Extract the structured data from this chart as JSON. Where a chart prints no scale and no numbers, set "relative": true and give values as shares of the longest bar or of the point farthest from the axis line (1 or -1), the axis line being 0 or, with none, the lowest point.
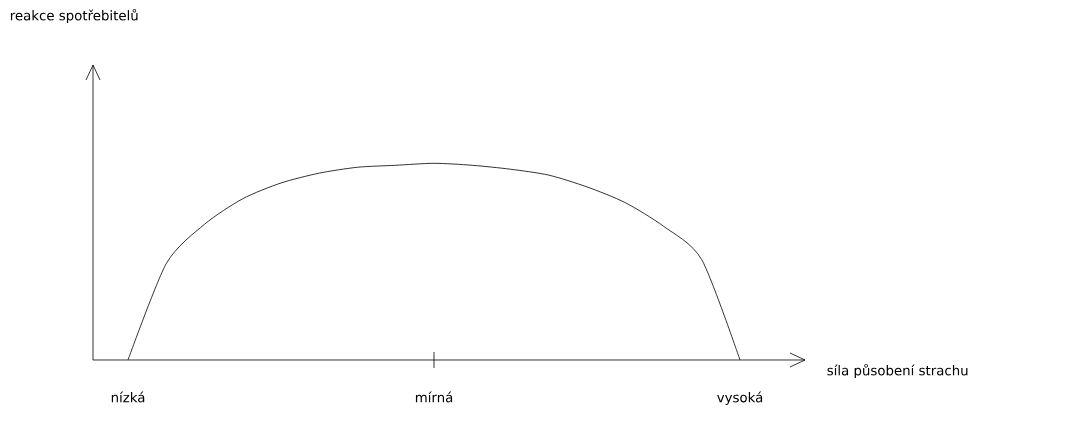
{
  "chart_data": {
    "type": "line",
    "relative": true,
    "xlabel": "síla působení strachu",
    "annotations": [
      "reakce spotřebitelů"
    ],
    "categories": [
      "nízká",
      null,
      null,
      null,
      null,
      null,
      null,
      null,
      "mírná",
      null,
      null,
      null,
      null,
      null,
      null,
      null,
      "vysoká"
    ],
    "series": [
      {
        "color": "#000000",
        "values": [
          0,
          0.49,
          0.69,
          0.82,
          0.9,
          0.95,
          0.98,
          0.99,
          1.0,
          0.99,
          0.97,
          0.94,
          0.88,
          0.8,
          0.68,
          0.51,
          0
        ]
      }
    ]
  }
}
